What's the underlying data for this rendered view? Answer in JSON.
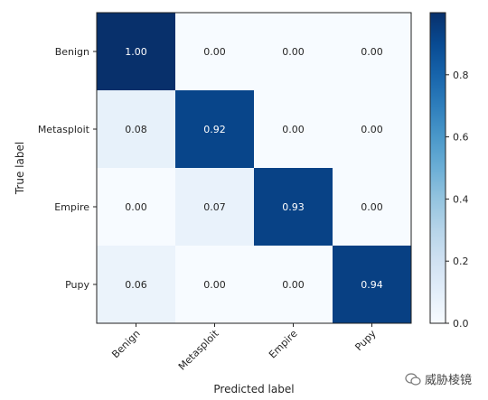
{
  "chart_data": {
    "type": "heatmap",
    "title": "",
    "xlabel": "Predicted label",
    "ylabel": "True label",
    "x_categories": [
      "Benign",
      "Metasploit",
      "Empire",
      "Pupy"
    ],
    "y_categories": [
      "Benign",
      "Metasploit",
      "Empire",
      "Pupy"
    ],
    "values": [
      [
        1.0,
        0.0,
        0.0,
        0.0
      ],
      [
        0.08,
        0.92,
        0.0,
        0.0
      ],
      [
        0.0,
        0.07,
        0.93,
        0.0
      ],
      [
        0.06,
        0.0,
        0.0,
        0.94
      ]
    ],
    "colormap": "Blues",
    "colorbar": {
      "range": [
        0,
        1
      ],
      "ticks": [
        "0.0",
        "0.2",
        "0.4",
        "0.6",
        "0.8"
      ]
    }
  },
  "watermark": {
    "text": "威胁棱镜"
  }
}
